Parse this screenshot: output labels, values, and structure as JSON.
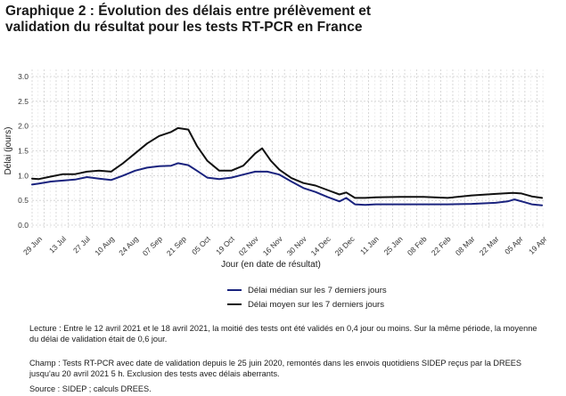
{
  "title_lines": [
    "Graphique 2 : Évolution des délais entre prélèvement et",
    "validation du résultat pour les tests RT-PCR en France"
  ],
  "notes": {
    "lecture": "Lecture : Entre le 12 avril 2021 et le 18 avril 2021, la moitié des tests ont été validés en 0,4 jour ou moins. Sur la même période, la moyenne du délai de validation était de 0,6 jour.",
    "champ": "Champ : Tests RT-PCR avec date de validation depuis le 25 juin 2020, remontés dans les envois quotidiens SIDEP reçus par la DREES jusqu'au 20 avril 2021 5 h. Exclusion des tests avec délais aberrants.",
    "source": "Source : SIDEP ; calculs DREES."
  },
  "colors": {
    "median": "#1a237e",
    "mean": "#111111",
    "grid": "#cfcfcf"
  },
  "chart_data": {
    "type": "line",
    "xlabel": "Jour (en date de résultat)",
    "ylabel": "Délai (jours)",
    "ylim": [
      0,
      3.0
    ],
    "xlim": [
      "2020-06-25",
      "2021-04-20"
    ],
    "yticks": [
      "0.0",
      "0.5",
      "1.0",
      "1.5",
      "2.0",
      "2.5",
      "3.0"
    ],
    "xticks": [
      {
        "date": "2020-06-29",
        "label": "29 Jun"
      },
      {
        "date": "2020-07-13",
        "label": "13 Jul"
      },
      {
        "date": "2020-07-27",
        "label": "27 Jul"
      },
      {
        "date": "2020-08-10",
        "label": "10 Aug"
      },
      {
        "date": "2020-08-24",
        "label": "24 Aug"
      },
      {
        "date": "2020-09-07",
        "label": "07 Sep"
      },
      {
        "date": "2020-09-21",
        "label": "21 Sep"
      },
      {
        "date": "2020-10-05",
        "label": "05 Oct"
      },
      {
        "date": "2020-10-19",
        "label": "19 Oct"
      },
      {
        "date": "2020-11-02",
        "label": "02 Nov"
      },
      {
        "date": "2020-11-16",
        "label": "16 Nov"
      },
      {
        "date": "2020-11-30",
        "label": "30 Nov"
      },
      {
        "date": "2020-12-14",
        "label": "14 Dec"
      },
      {
        "date": "2020-12-28",
        "label": "28 Dec"
      },
      {
        "date": "2021-01-11",
        "label": "11 Jan"
      },
      {
        "date": "2021-01-25",
        "label": "25 Jan"
      },
      {
        "date": "2021-02-08",
        "label": "08 Feb"
      },
      {
        "date": "2021-02-22",
        "label": "22 Feb"
      },
      {
        "date": "2021-03-08",
        "label": "08 Mar"
      },
      {
        "date": "2021-03-22",
        "label": "22 Mar"
      },
      {
        "date": "2021-04-05",
        "label": "05 Apr"
      },
      {
        "date": "2021-04-19",
        "label": "19 Apr"
      }
    ],
    "grid": true,
    "legend_position": "bottom",
    "series": [
      {
        "name": "Délai médian sur les 7 derniers jours",
        "color": "#1a237e",
        "points": [
          [
            "2020-06-25",
            0.82
          ],
          [
            "2020-06-29",
            0.84
          ],
          [
            "2020-07-06",
            0.88
          ],
          [
            "2020-07-13",
            0.9
          ],
          [
            "2020-07-20",
            0.92
          ],
          [
            "2020-07-27",
            0.97
          ],
          [
            "2020-08-03",
            0.94
          ],
          [
            "2020-08-10",
            0.91
          ],
          [
            "2020-08-17",
            1.0
          ],
          [
            "2020-08-24",
            1.1
          ],
          [
            "2020-08-31",
            1.16
          ],
          [
            "2020-09-07",
            1.19
          ],
          [
            "2020-09-14",
            1.2
          ],
          [
            "2020-09-18",
            1.25
          ],
          [
            "2020-09-24",
            1.21
          ],
          [
            "2020-09-29",
            1.1
          ],
          [
            "2020-10-05",
            0.96
          ],
          [
            "2020-10-12",
            0.93
          ],
          [
            "2020-10-19",
            0.96
          ],
          [
            "2020-10-26",
            1.02
          ],
          [
            "2020-11-02",
            1.08
          ],
          [
            "2020-11-09",
            1.08
          ],
          [
            "2020-11-16",
            1.02
          ],
          [
            "2020-11-23",
            0.88
          ],
          [
            "2020-11-30",
            0.75
          ],
          [
            "2020-12-07",
            0.67
          ],
          [
            "2020-12-14",
            0.57
          ],
          [
            "2020-12-21",
            0.48
          ],
          [
            "2020-12-25",
            0.55
          ],
          [
            "2020-12-30",
            0.42
          ],
          [
            "2021-01-05",
            0.41
          ],
          [
            "2021-01-11",
            0.42
          ],
          [
            "2021-01-25",
            0.42
          ],
          [
            "2021-02-08",
            0.42
          ],
          [
            "2021-02-22",
            0.42
          ],
          [
            "2021-03-08",
            0.43
          ],
          [
            "2021-03-22",
            0.45
          ],
          [
            "2021-03-29",
            0.48
          ],
          [
            "2021-04-02",
            0.52
          ],
          [
            "2021-04-07",
            0.47
          ],
          [
            "2021-04-12",
            0.42
          ],
          [
            "2021-04-18",
            0.4
          ]
        ]
      },
      {
        "name": "Délai moyen sur les 7 derniers jours",
        "color": "#111111",
        "points": [
          [
            "2020-06-25",
            0.94
          ],
          [
            "2020-06-29",
            0.93
          ],
          [
            "2020-07-06",
            0.98
          ],
          [
            "2020-07-13",
            1.03
          ],
          [
            "2020-07-20",
            1.03
          ],
          [
            "2020-07-27",
            1.08
          ],
          [
            "2020-08-03",
            1.1
          ],
          [
            "2020-08-10",
            1.08
          ],
          [
            "2020-08-17",
            1.25
          ],
          [
            "2020-08-24",
            1.45
          ],
          [
            "2020-08-31",
            1.65
          ],
          [
            "2020-09-07",
            1.8
          ],
          [
            "2020-09-14",
            1.88
          ],
          [
            "2020-09-18",
            1.96
          ],
          [
            "2020-09-24",
            1.93
          ],
          [
            "2020-09-29",
            1.6
          ],
          [
            "2020-10-05",
            1.3
          ],
          [
            "2020-10-12",
            1.1
          ],
          [
            "2020-10-19",
            1.1
          ],
          [
            "2020-10-26",
            1.2
          ],
          [
            "2020-11-02",
            1.45
          ],
          [
            "2020-11-06",
            1.55
          ],
          [
            "2020-11-11",
            1.3
          ],
          [
            "2020-11-16",
            1.12
          ],
          [
            "2020-11-23",
            0.95
          ],
          [
            "2020-11-30",
            0.85
          ],
          [
            "2020-12-07",
            0.8
          ],
          [
            "2020-12-14",
            0.71
          ],
          [
            "2020-12-21",
            0.62
          ],
          [
            "2020-12-25",
            0.66
          ],
          [
            "2020-12-30",
            0.55
          ],
          [
            "2021-01-05",
            0.55
          ],
          [
            "2021-01-11",
            0.56
          ],
          [
            "2021-01-25",
            0.57
          ],
          [
            "2021-02-08",
            0.57
          ],
          [
            "2021-02-22",
            0.55
          ],
          [
            "2021-03-08",
            0.6
          ],
          [
            "2021-03-22",
            0.63
          ],
          [
            "2021-04-01",
            0.65
          ],
          [
            "2021-04-06",
            0.64
          ],
          [
            "2021-04-12",
            0.58
          ],
          [
            "2021-04-18",
            0.55
          ]
        ]
      }
    ]
  }
}
